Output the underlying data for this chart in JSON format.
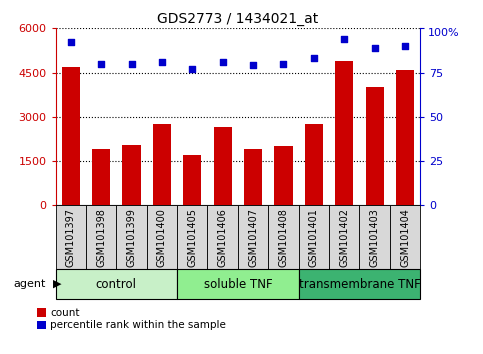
{
  "title": "GDS2773 / 1434021_at",
  "samples": [
    "GSM101397",
    "GSM101398",
    "GSM101399",
    "GSM101400",
    "GSM101405",
    "GSM101406",
    "GSM101407",
    "GSM101408",
    "GSM101401",
    "GSM101402",
    "GSM101403",
    "GSM101404"
  ],
  "counts": [
    4700,
    1900,
    2050,
    2750,
    1700,
    2650,
    1900,
    2000,
    2750,
    4900,
    4000,
    4600
  ],
  "percentile_ranks": [
    92,
    80,
    80,
    81,
    77,
    81,
    79,
    80,
    83,
    94,
    89,
    90
  ],
  "groups": [
    {
      "label": "control",
      "start": 0,
      "end": 4,
      "color": "#c8f0c8"
    },
    {
      "label": "soluble TNF",
      "start": 4,
      "end": 8,
      "color": "#90ee90"
    },
    {
      "label": "transmembrane TNF",
      "start": 8,
      "end": 12,
      "color": "#3cb371"
    }
  ],
  "bar_color": "#cc0000",
  "dot_color": "#0000cc",
  "left_yaxis_color": "#cc0000",
  "right_yaxis_color": "#0000cc",
  "ylim_left": [
    0,
    6000
  ],
  "ylim_right": [
    0,
    100
  ],
  "yticks_left": [
    0,
    1500,
    3000,
    4500,
    6000
  ],
  "yticks_right": [
    0,
    25,
    50,
    75,
    100
  ],
  "grid_color": "black",
  "legend_items": [
    {
      "label": "count",
      "color": "#cc0000"
    },
    {
      "label": "percentile rank within the sample",
      "color": "#0000cc"
    }
  ],
  "agent_label": "agent",
  "bar_width": 0.6,
  "label_bg_color": "#d8d8d8",
  "tick_label_fontsize": 7,
  "group_fontsize": 8.5,
  "title_fontsize": 10
}
